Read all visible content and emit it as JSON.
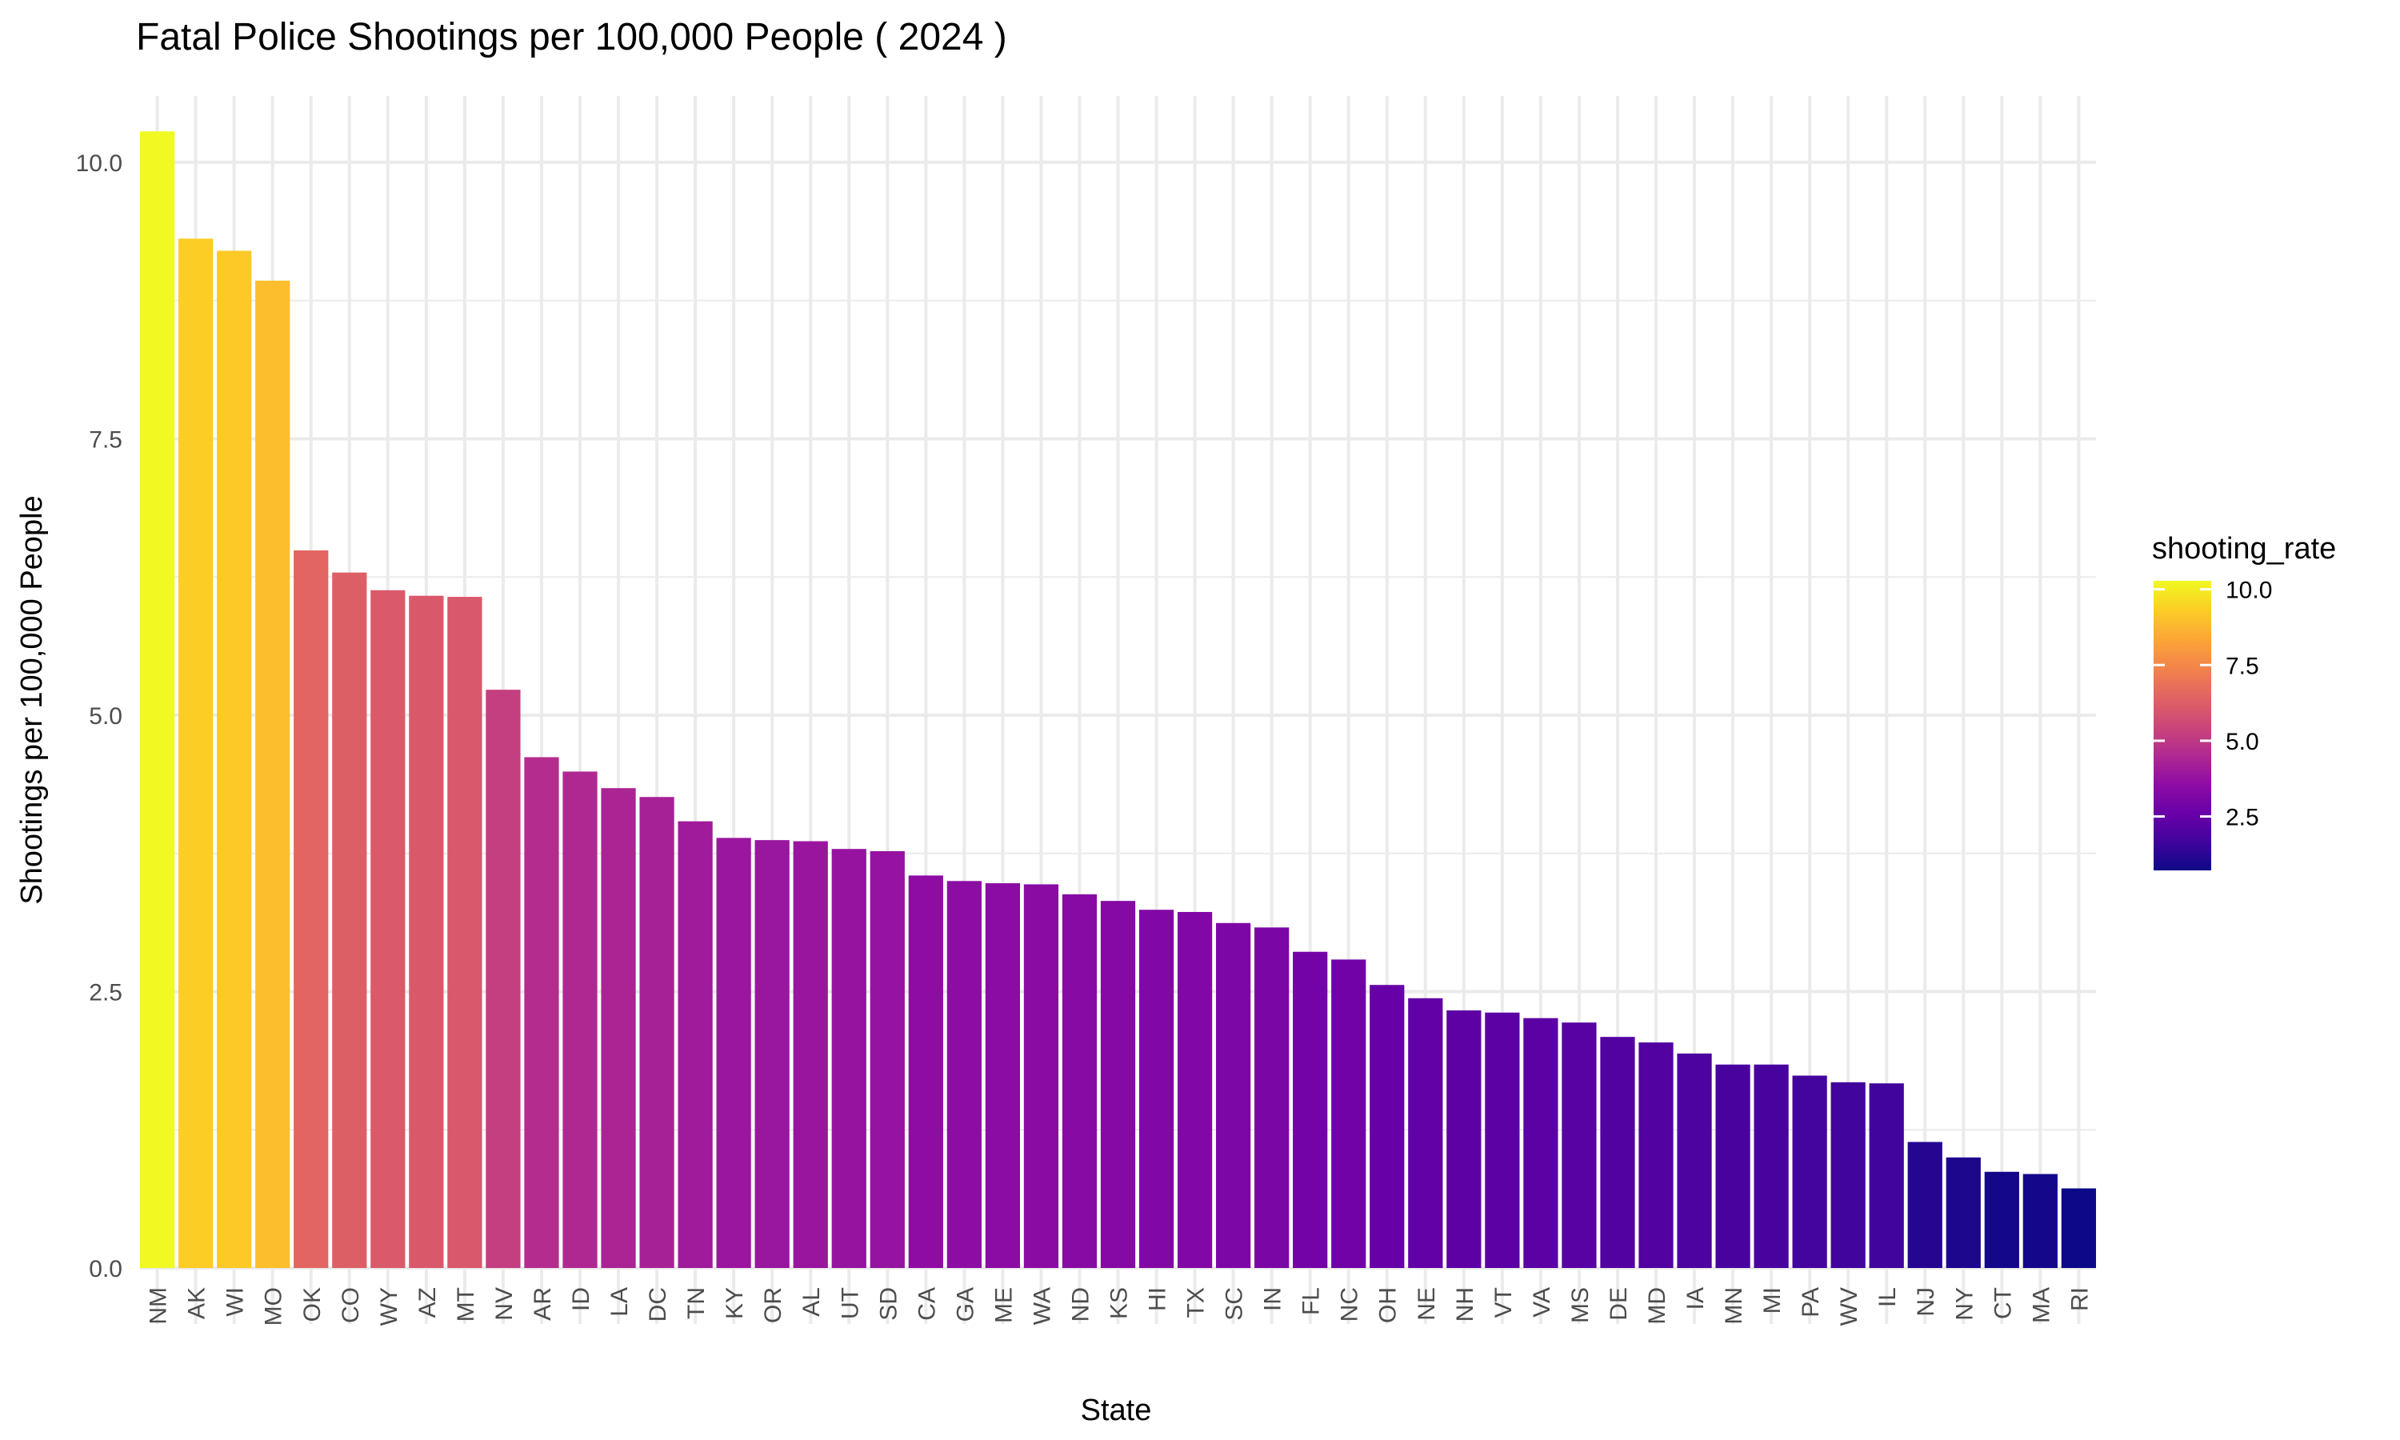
{
  "chart_data": {
    "type": "bar",
    "title": "Fatal Police Shootings per 100,000 People ( 2024 )",
    "xlabel": "State",
    "ylabel": "Shootings per 100,000 People",
    "ylim": [
      0,
      10.6
    ],
    "yticks": [
      0,
      2.5,
      5,
      7.5,
      10
    ],
    "ytick_labels": [
      "0.0",
      "2.5",
      "5.0",
      "7.5",
      "10.0"
    ],
    "grid": true,
    "categories": [
      "NM",
      "AK",
      "WI",
      "MO",
      "OK",
      "CO",
      "WY",
      "AZ",
      "MT",
      "NV",
      "AR",
      "ID",
      "LA",
      "DC",
      "TN",
      "KY",
      "OR",
      "AL",
      "UT",
      "SD",
      "CA",
      "GA",
      "ME",
      "WA",
      "ND",
      "KS",
      "HI",
      "TX",
      "SC",
      "IN",
      "FL",
      "NC",
      "OH",
      "NE",
      "NH",
      "VT",
      "VA",
      "MS",
      "DE",
      "MD",
      "IA",
      "MN",
      "MI",
      "PA",
      "WV",
      "IL",
      "NJ",
      "NY",
      "CT",
      "MA",
      "RI"
    ],
    "values": [
      10.28,
      9.31,
      9.2,
      8.93,
      6.49,
      6.29,
      6.13,
      6.08,
      6.07,
      5.23,
      4.62,
      4.49,
      4.34,
      4.26,
      4.04,
      3.89,
      3.87,
      3.86,
      3.79,
      3.77,
      3.55,
      3.5,
      3.48,
      3.47,
      3.38,
      3.32,
      3.24,
      3.22,
      3.12,
      3.08,
      2.86,
      2.79,
      2.56,
      2.44,
      2.33,
      2.31,
      2.26,
      2.22,
      2.09,
      2.04,
      1.94,
      1.84,
      1.84,
      1.74,
      1.68,
      1.67,
      1.14,
      1.0,
      0.87,
      0.85,
      0.72
    ],
    "legend": {
      "title": "shooting_rate",
      "position": "right",
      "range": [
        0.72,
        10.28
      ],
      "ticks": [
        2.5,
        5,
        7.5,
        10
      ],
      "tick_labels": [
        "2.5",
        "5.0",
        "7.5",
        "10.0"
      ],
      "colormap": "plasma"
    }
  }
}
